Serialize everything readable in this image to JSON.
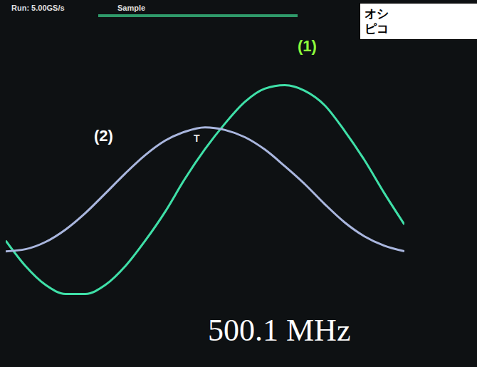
{
  "chart_data": {
    "type": "line",
    "title": "Run: 5.00GS/s",
    "subtitle": "Sample",
    "note_box": [
      "オシ",
      "ピコ"
    ],
    "annotations": [
      "T",
      "500.1 MHz"
    ],
    "x": [
      0,
      0.5,
      1,
      1.5,
      2,
      2.5,
      3,
      3.5,
      4,
      4.5,
      5,
      5.5,
      6,
      6.5,
      7,
      7.5,
      8,
      8.5,
      9,
      9.5,
      10
    ],
    "series": [
      {
        "name": "(1)",
        "color": "#3fe0a8",
        "values": [
          -1.2,
          -1.8,
          -2.24,
          -2.45,
          -2.45,
          -2.24,
          -1.8,
          -1.2,
          -0.52,
          0.26,
          0.95,
          1.55,
          2.06,
          2.37,
          2.45,
          2.32,
          1.98,
          1.38,
          0.69,
          -0.09,
          -0.82
        ]
      },
      {
        "name": "(2)",
        "color": "#a9b6de",
        "values": [
          -1.45,
          -1.4,
          -1.23,
          -0.94,
          -0.55,
          -0.09,
          0.38,
          0.81,
          1.15,
          1.36,
          1.46,
          1.4,
          1.23,
          0.94,
          0.55,
          0.13,
          -0.34,
          -0.77,
          -1.1,
          -1.32,
          -1.45
        ]
      }
    ],
    "xlim": [
      0,
      10
    ],
    "ylim": [
      -4,
      4
    ],
    "xticks": [
      0,
      1,
      2,
      3,
      4,
      5,
      6,
      7,
      8,
      9,
      10
    ],
    "yticks": [
      -4,
      -3,
      -2,
      -1,
      0,
      1,
      2,
      3,
      4
    ],
    "grid": true,
    "tick_labels": false
  }
}
